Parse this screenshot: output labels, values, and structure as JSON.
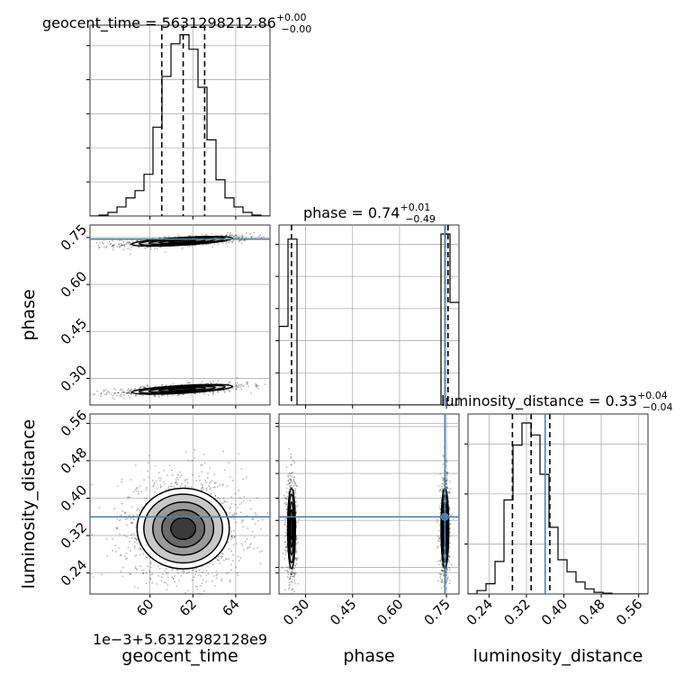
{
  "chart_data": {
    "type": "corner",
    "parameters": [
      "geocent_time",
      "phase",
      "luminosity_distance"
    ],
    "titles": {
      "geocent_time": {
        "prefix": "geocent_time = 5631298212.86",
        "up": "+0.00",
        "down": "−0.00"
      },
      "phase": {
        "prefix": "phase = 0.74",
        "up": "+0.01",
        "down": "−0.49"
      },
      "luminosity_distance": {
        "prefix": "luminosity_distance = 0.33",
        "up": "+0.04",
        "down": "−0.04"
      }
    },
    "axis_labels": {
      "geocent_time": "geocent_time",
      "phase": "phase",
      "luminosity_distance": "luminosity_distance"
    },
    "offset_label": "1e−3+5.6312982128e9",
    "ranges": {
      "geocent_time": [
        57.2,
        65.6
      ],
      "phase": [
        0.215,
        0.79
      ],
      "luminosity_distance": [
        0.195,
        0.58
      ]
    },
    "ticks": {
      "geocent_time": {
        "values": [
          60,
          62,
          64
        ],
        "labels": [
          "60",
          "62",
          "64"
        ]
      },
      "phase": {
        "values": [
          0.3,
          0.45,
          0.6,
          0.75
        ],
        "labels": [
          "0.30",
          "0.45",
          "0.60",
          "0.75"
        ]
      },
      "luminosity_distance": {
        "values": [
          0.24,
          0.32,
          0.4,
          0.48,
          0.56
        ],
        "labels": [
          "0.24",
          "0.32",
          "0.40",
          "0.48",
          "0.56"
        ]
      }
    },
    "truths": {
      "phase": 0.745,
      "luminosity_distance": 0.36
    },
    "quantiles": {
      "geocent_time": [
        60.55,
        61.55,
        62.55
      ],
      "phase": [
        0.255,
        0.745,
        0.755
      ],
      "luminosity_distance": [
        0.29,
        0.33,
        0.37
      ]
    },
    "histograms": {
      "geocent_time": {
        "edges": [
          57.2,
          57.62,
          58.04,
          58.46,
          58.88,
          59.3,
          59.72,
          60.14,
          60.56,
          60.98,
          61.4,
          61.82,
          62.24,
          62.66,
          63.08,
          63.5,
          63.92,
          64.34,
          64.76,
          65.18,
          65.6
        ],
        "values": [
          0,
          0.005,
          0.02,
          0.05,
          0.1,
          0.14,
          0.23,
          0.49,
          0.77,
          0.95,
          1.0,
          0.92,
          0.71,
          0.42,
          0.2,
          0.1,
          0.05,
          0.02,
          0.005,
          0
        ]
      },
      "phase": {
        "edges": [
          0.215,
          0.2438,
          0.2725,
          0.3013,
          0.33,
          0.3588,
          0.3875,
          0.4163,
          0.445,
          0.4738,
          0.5025,
          0.5313,
          0.56,
          0.5888,
          0.6175,
          0.6463,
          0.675,
          0.7038,
          0.7325,
          0.7613,
          0.79
        ],
        "values": [
          0.46,
          0.97,
          0,
          0,
          0,
          0,
          0,
          0,
          0,
          0,
          0,
          0,
          0,
          0,
          0,
          0,
          0,
          0,
          1.0,
          0.6
        ]
      },
      "luminosity_distance": {
        "edges": [
          0.195,
          0.2143,
          0.2335,
          0.2528,
          0.272,
          0.2913,
          0.3105,
          0.3298,
          0.349,
          0.3683,
          0.3875,
          0.4068,
          0.426,
          0.4453,
          0.4645,
          0.4838,
          0.503,
          0.5223,
          0.5415,
          0.5608,
          0.58
        ],
        "values": [
          0,
          0.02,
          0.06,
          0.19,
          0.55,
          0.87,
          1.0,
          0.93,
          0.7,
          0.39,
          0.2,
          0.13,
          0.07,
          0.03,
          0.01,
          0.005,
          0,
          0,
          0,
          0
        ]
      }
    },
    "joint_samples": {
      "geocent_time_phase": [
        {
          "x_center": 61.5,
          "y_center": 0.738,
          "x_spread": 1.15,
          "y_spread": 0.006,
          "slope": 0.004,
          "weight": 0.5
        },
        {
          "x_center": 61.5,
          "y_center": 0.265,
          "x_spread": 1.15,
          "y_spread": 0.006,
          "slope": 0.004,
          "weight": 0.5
        }
      ],
      "geocent_time_luminosity_distance": [
        {
          "x_center": 61.55,
          "y_center": 0.335,
          "x_spread": 1.05,
          "y_spread": 0.042,
          "slope": 0,
          "weight": 1
        }
      ],
      "phase_luminosity_distance": [
        {
          "x_center": 0.255,
          "y_center": 0.335,
          "x_spread": 0.006,
          "y_spread": 0.042,
          "slope": 0,
          "weight": 0.5
        },
        {
          "x_center": 0.745,
          "y_center": 0.335,
          "x_spread": 0.006,
          "y_spread": 0.042,
          "slope": 0,
          "weight": 0.5
        }
      ]
    },
    "colors": {
      "truth": "#4682b4",
      "hist": "#000000",
      "grid": "#b0b0b0",
      "points": "#000000"
    },
    "grid": true
  }
}
